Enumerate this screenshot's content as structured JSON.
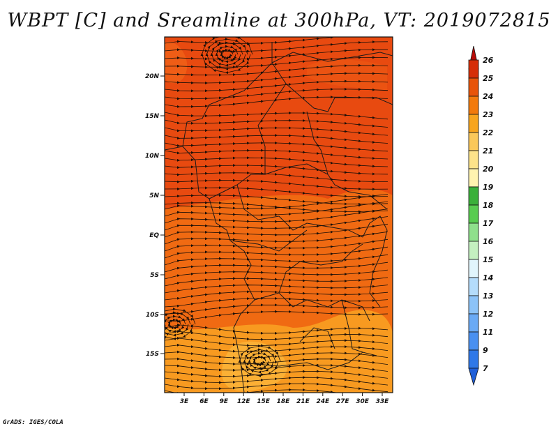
{
  "title": "WBPT [C] and Sreamline at 300hPa, VT: 2019072815",
  "credit": "GrADS: IGES/COLA",
  "map": {
    "variable": "WBPT",
    "units": "C",
    "level": "300hPa",
    "valid_time": "2019072815",
    "lat_ticks": [
      "20N",
      "15N",
      "10N",
      "5N",
      "EQ",
      "5S",
      "10S",
      "15S"
    ],
    "lon_ticks": [
      "3E",
      "6E",
      "9E",
      "12E",
      "15E",
      "18E",
      "21E",
      "24E",
      "27E",
      "30E",
      "33E"
    ]
  },
  "colorbar": {
    "labels": [
      "7",
      "9",
      "11",
      "12",
      "13",
      "14",
      "15",
      "16",
      "17",
      "18",
      "19",
      "20",
      "21",
      "22",
      "23",
      "24",
      "25",
      "26"
    ],
    "colors": [
      "#1f5fd8",
      "#2f78e8",
      "#4a90f0",
      "#6aaaf5",
      "#8cc3f8",
      "#b4dcfb",
      "#e1f5fc",
      "#c4f0c0",
      "#8fe08c",
      "#58cc50",
      "#3ab03a",
      "#fff3b0",
      "#fde38a",
      "#fbc85a",
      "#f8a51e",
      "#f27a0c",
      "#e85409",
      "#d62e08",
      "#b80b08"
    ]
  },
  "colors": {
    "warm_core": "#e84a10",
    "warm_mid": "#f06a12",
    "warm_low": "#f89a20",
    "warm_edge": "#fbc045",
    "streamline": "#1a0f08",
    "border": "#1a1a1a"
  }
}
